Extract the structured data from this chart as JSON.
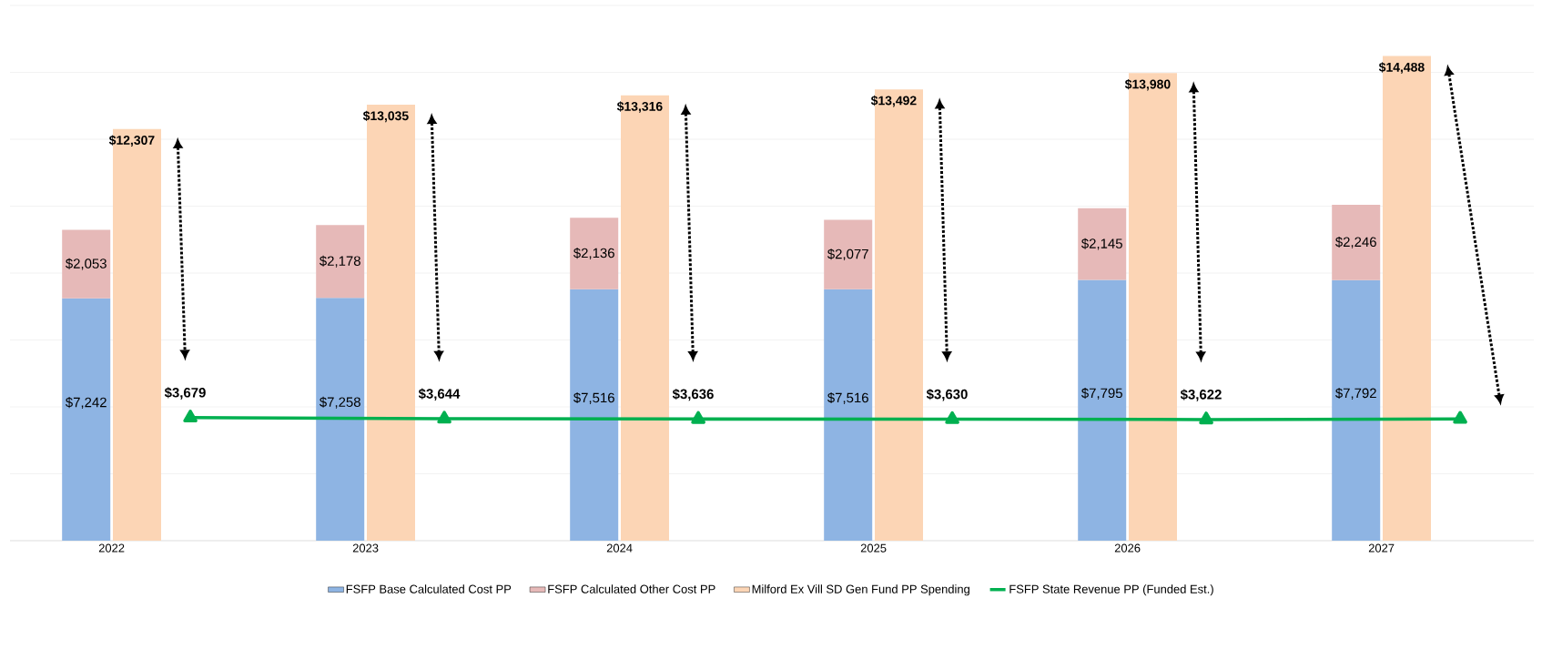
{
  "chart_data": {
    "type": "bar",
    "categories": [
      "2022",
      "2023",
      "2024",
      "2025",
      "2026",
      "2027"
    ],
    "series": [
      {
        "name": "FSFP Base Calculated Cost PP",
        "color": "#8eb4e3",
        "values": [
          7242,
          7258,
          7516,
          7516,
          7795,
          7792
        ],
        "value_labels": [
          "$7,242",
          "$7,258",
          "$7,516",
          "$7,516",
          "$7,795",
          "$7,792"
        ]
      },
      {
        "name": "FSFP Calculated Other Cost PP",
        "color": "#e6b9b8",
        "values": [
          2053,
          2178,
          2136,
          2077,
          2145,
          2246
        ],
        "value_labels": [
          "$2,053",
          "$2,178",
          "$2,136",
          "$2,077",
          "$2,145",
          "$2,246"
        ]
      },
      {
        "name": "Milford Ex Vill SD Gen Fund PP Spending",
        "color": "#fcd5b5",
        "axis": "y2",
        "values": [
          12307,
          13035,
          13316,
          13492,
          13980,
          14488
        ],
        "value_labels": [
          "$12,307",
          "$13,035",
          "$13,316",
          "$13,492",
          "$13,980",
          "$14,488"
        ]
      },
      {
        "name": "FSFP State Revenue PP (Funded Est.)",
        "type": "line",
        "color": "#00b050",
        "marker": "triangle",
        "values": [
          3679,
          3644,
          3636,
          3630,
          3622,
          3640
        ],
        "value_labels": [
          "$3,679",
          "$3,644",
          "$3,636",
          "$3,630",
          "$3,622",
          null
        ]
      }
    ],
    "stacked": true,
    "ylim": [
      0,
      16000
    ],
    "y2lim": [
      0,
      16000
    ],
    "yticks": [
      {
        "value": 0,
        "label": null
      },
      {
        "value": 2000,
        "label": null
      },
      {
        "value": 4000,
        "label": null
      },
      {
        "value": 6000,
        "label": null
      },
      {
        "value": 8000,
        "label": null
      },
      {
        "value": 10000,
        "label": null
      },
      {
        "value": 12000,
        "label": null
      },
      {
        "value": 14000,
        "label": null
      },
      {
        "value": 16000,
        "label": null
      }
    ],
    "tick_labels": "x",
    "grid": "y",
    "legend": "bottom"
  }
}
